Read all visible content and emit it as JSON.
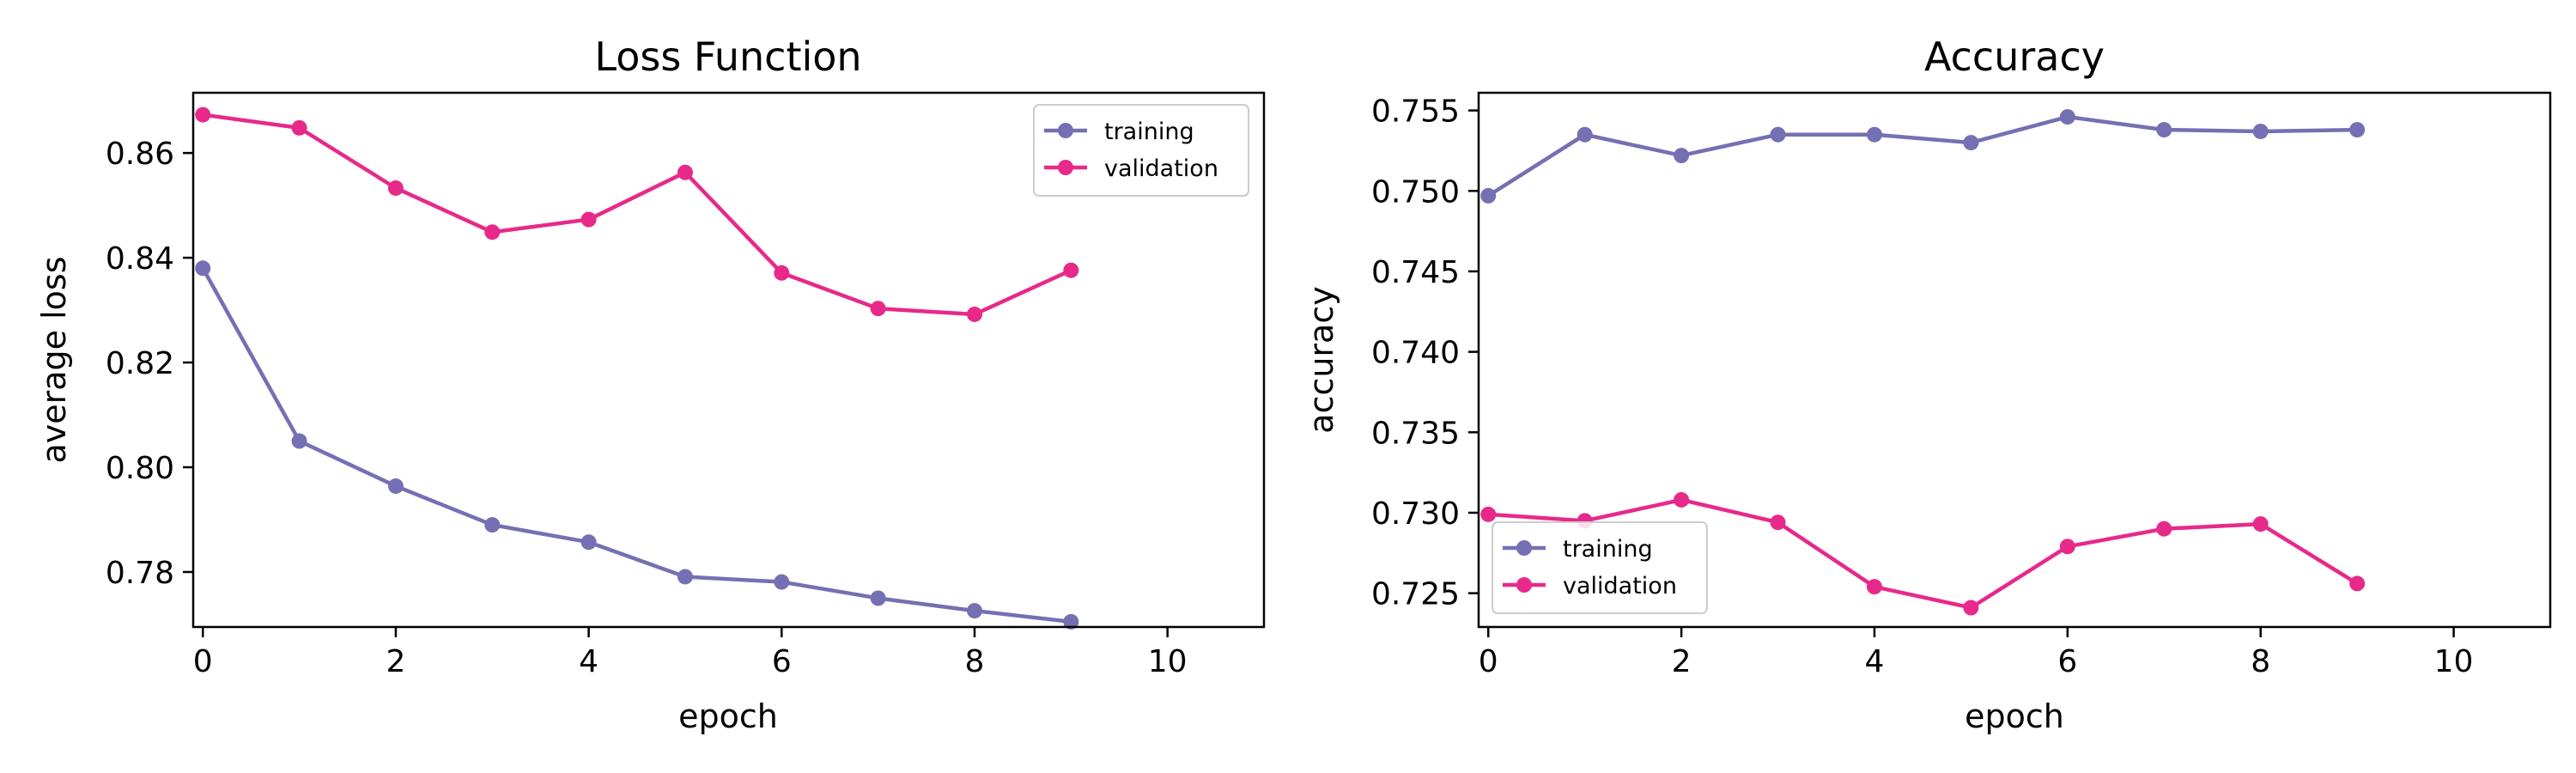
{
  "colors": {
    "training": "#7570b3",
    "validation": "#e7298a"
  },
  "chart_data": [
    {
      "type": "line",
      "title": "Loss Function",
      "xlabel": "epoch",
      "ylabel": "average loss",
      "xlim": [
        -0.1,
        11
      ],
      "ylim": [
        0.7695,
        0.8715
      ],
      "xticks": [
        0,
        2,
        4,
        6,
        8,
        10
      ],
      "xtick_labels": [
        "0",
        "2",
        "4",
        "6",
        "8",
        "10"
      ],
      "yticks": [
        0.78,
        0.8,
        0.82,
        0.84,
        0.86
      ],
      "ytick_labels": [
        "0.78",
        "0.80",
        "0.82",
        "0.84",
        "0.86"
      ],
      "legend_position": "upper-right",
      "x": [
        0,
        1,
        2,
        3,
        4,
        5,
        6,
        7,
        8,
        9
      ],
      "series": [
        {
          "name": "training",
          "values": [
            0.838,
            0.805,
            0.7964,
            0.789,
            0.7857,
            0.7791,
            0.7781,
            0.775,
            0.7726,
            0.7705
          ]
        },
        {
          "name": "validation",
          "values": [
            0.8673,
            0.8648,
            0.8533,
            0.8449,
            0.8473,
            0.8563,
            0.8371,
            0.8303,
            0.8292,
            0.8376
          ]
        }
      ]
    },
    {
      "type": "line",
      "title": "Accuracy",
      "xlabel": "epoch",
      "ylabel": "accuracy",
      "xlim": [
        -0.1,
        11
      ],
      "ylim": [
        0.7229,
        0.7561
      ],
      "xticks": [
        0,
        2,
        4,
        6,
        8,
        10
      ],
      "xtick_labels": [
        "0",
        "2",
        "4",
        "6",
        "8",
        "10"
      ],
      "yticks": [
        0.725,
        0.73,
        0.735,
        0.74,
        0.745,
        0.75,
        0.755
      ],
      "ytick_labels": [
        "0.725",
        "0.730",
        "0.735",
        "0.740",
        "0.745",
        "0.750",
        "0.755"
      ],
      "legend_position": "lower-left",
      "x": [
        0,
        1,
        2,
        3,
        4,
        5,
        6,
        7,
        8,
        9
      ],
      "series": [
        {
          "name": "training",
          "values": [
            0.7497,
            0.7535,
            0.7522,
            0.7535,
            0.7535,
            0.753,
            0.7546,
            0.7538,
            0.7537,
            0.7538
          ]
        },
        {
          "name": "validation",
          "values": [
            0.7299,
            0.7295,
            0.7308,
            0.7294,
            0.7254,
            0.7241,
            0.7279,
            0.729,
            0.7293,
            0.7256
          ]
        }
      ]
    }
  ]
}
